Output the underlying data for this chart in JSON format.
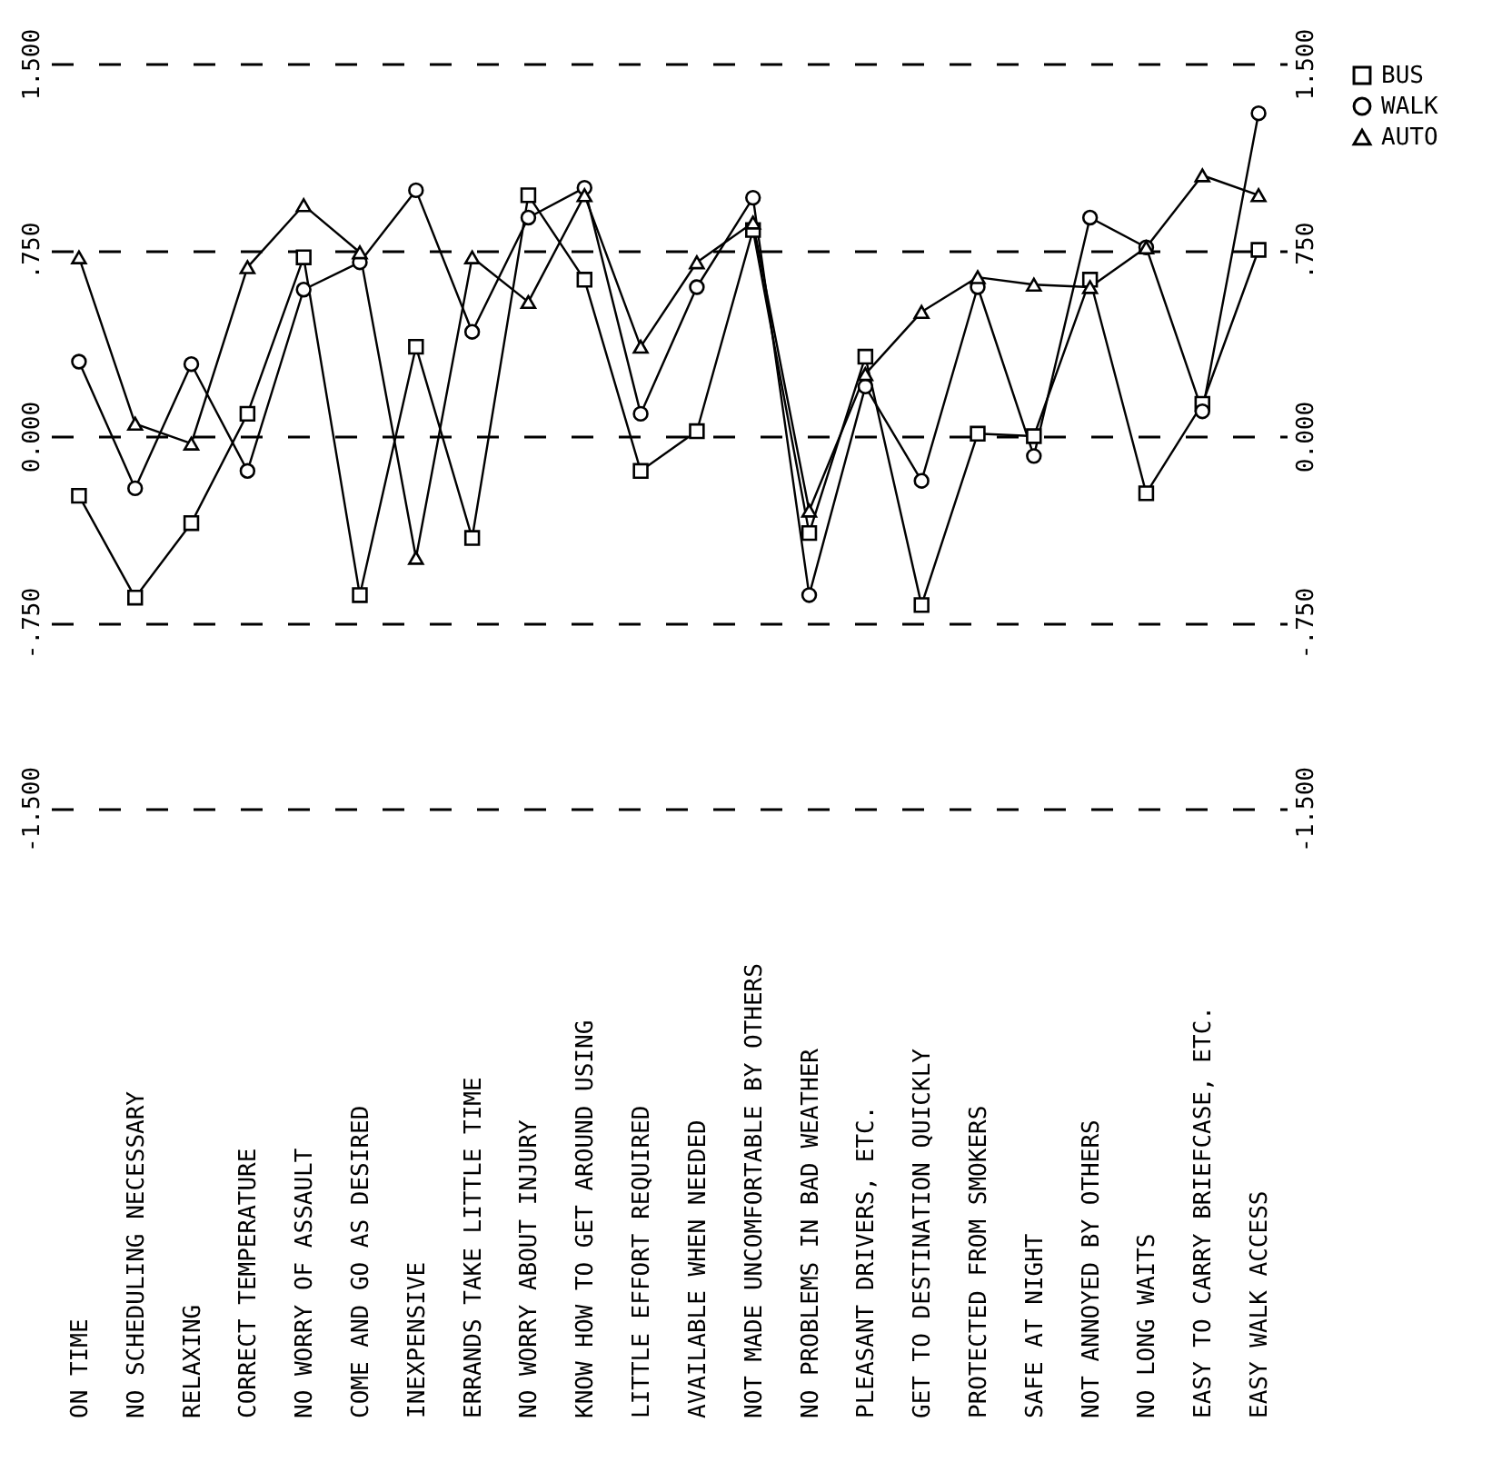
{
  "chart_data": {
    "type": "line",
    "categories": [
      "ON TIME",
      "NO SCHEDULING NECESSARY",
      "RELAXING",
      "CORRECT TEMPERATURE",
      "NO WORRY OF ASSAULT",
      "COME AND GO AS DESIRED",
      "INEXPENSIVE",
      "ERRANDS TAKE LITTLE TIME",
      "NO WORRY ABOUT INJURY",
      "KNOW HOW TO GET AROUND USING",
      "LITTLE EFFORT REQUIRED",
      "AVAILABLE WHEN NEEDED",
      "NOT MADE UNCOMFORTABLE BY OTHERS",
      "NO PROBLEMS IN BAD WEATHER",
      "PLEASANT DRIVERS, ETC.",
      "GET TO DESTINATION QUICKLY",
      "PROTECTED FROM SMOKERS",
      "SAFE AT NIGHT",
      "NOT ANNOYED BY OTHERS",
      "NO LONG WAITS",
      "EASY TO CARRY BRIEFCASE, ETC.",
      "EASY WALK ACCESS"
    ],
    "series": [
      {
        "name": "BUS",
        "color": "#000000",
        "marker": "square",
        "values": [
          -0.24,
          -0.65,
          -0.35,
          0.09,
          0.72,
          -0.64,
          0.36,
          -0.41,
          0.97,
          0.63,
          -0.14,
          0.02,
          0.83,
          -0.39,
          0.32,
          -0.68,
          0.01,
          0.0,
          0.63,
          -0.23,
          0.13,
          0.75
        ]
      },
      {
        "name": "WALK",
        "color": "#000000",
        "marker": "circle",
        "values": [
          0.3,
          -0.21,
          0.29,
          -0.14,
          0.59,
          0.7,
          0.99,
          0.42,
          0.88,
          1.0,
          0.09,
          0.6,
          0.96,
          -0.64,
          0.2,
          -0.18,
          0.6,
          -0.08,
          0.88,
          0.76,
          0.1,
          1.3
        ]
      },
      {
        "name": "AUTO",
        "color": "#000000",
        "marker": "triangle",
        "values": [
          0.72,
          0.05,
          -0.03,
          0.68,
          0.93,
          0.74,
          -0.49,
          0.72,
          0.54,
          0.97,
          0.36,
          0.7,
          0.86,
          -0.3,
          0.25,
          0.5,
          0.64,
          0.61,
          0.6,
          0.76,
          1.05,
          0.97
        ]
      }
    ],
    "ylim": [
      -1.5,
      1.5
    ],
    "yticks": [
      {
        "value": -1.5,
        "label": "-1.500"
      },
      {
        "value": -0.75,
        "label": "-.750"
      },
      {
        "value": 0,
        "label": "0.000"
      },
      {
        "value": 0.75,
        "label": ".750"
      },
      {
        "value": 1.5,
        "label": "1.500"
      }
    ],
    "y2lim": [
      -1.5,
      1.5
    ],
    "y2ticks": [
      {
        "value": -1.5,
        "label": "-1.500"
      },
      {
        "value": -0.75,
        "label": "-.750"
      },
      {
        "value": 0,
        "label": "0.000"
      },
      {
        "value": 0.75,
        "label": ".750"
      },
      {
        "value": 1.5,
        "label": "1.500"
      }
    ],
    "grid": "y",
    "legend": "right",
    "line_style": "solid"
  }
}
